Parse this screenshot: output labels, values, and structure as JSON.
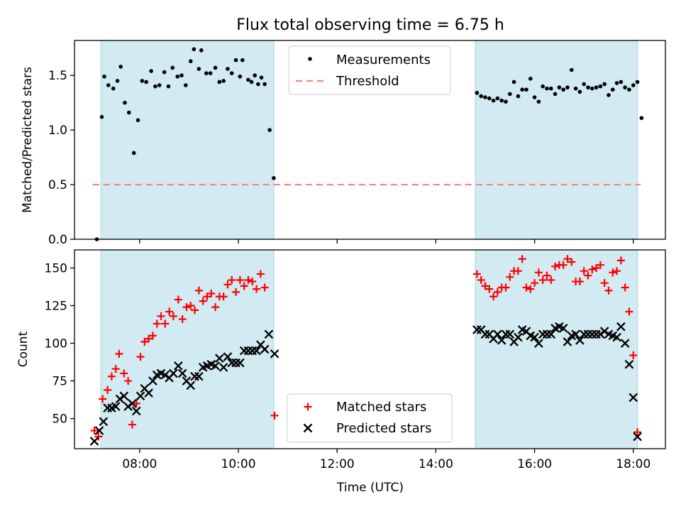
{
  "title": "Flux total observing time = 6.75 h",
  "colors": {
    "shade": "#add8e6",
    "threshold": "#ff7f7f",
    "matched": "#ff0000",
    "predicted": "#000000",
    "measurement": "#000000"
  },
  "chart_data": [
    {
      "type": "scatter",
      "ylabel": "Matched/Predicted stars",
      "ylim": [
        0,
        1.82
      ],
      "xlim_hours": [
        6.68,
        18.65
      ],
      "yticks": [
        {
          "v": 0,
          "label": "0.0"
        },
        {
          "v": 0.5,
          "label": "0.5"
        },
        {
          "v": 1.0,
          "label": "1.0"
        },
        {
          "v": 1.5,
          "label": "1.5"
        }
      ],
      "shaded_intervals": [
        [
          "07:13",
          "10:43"
        ],
        [
          "14:48",
          "18:05"
        ]
      ],
      "threshold": 0.5,
      "legend": [
        "Measurements",
        "Threshold"
      ],
      "legend_position": "upper center",
      "series": [
        {
          "name": "Measurements",
          "points": [
            [
              "07:08",
              0.0
            ],
            [
              "07:14",
              1.12
            ],
            [
              "07:17",
              1.49
            ],
            [
              "07:22",
              1.41
            ],
            [
              "07:28",
              1.38
            ],
            [
              "07:33",
              1.45
            ],
            [
              "07:37",
              1.58
            ],
            [
              "07:42",
              1.25
            ],
            [
              "07:47",
              1.16
            ],
            [
              "07:53",
              0.79
            ],
            [
              "07:58",
              1.09
            ],
            [
              "08:03",
              1.45
            ],
            [
              "08:08",
              1.44
            ],
            [
              "08:14",
              1.54
            ],
            [
              "08:19",
              1.4
            ],
            [
              "08:24",
              1.41
            ],
            [
              "08:30",
              1.53
            ],
            [
              "08:35",
              1.4
            ],
            [
              "08:40",
              1.57
            ],
            [
              "08:46",
              1.49
            ],
            [
              "08:51",
              1.5
            ],
            [
              "08:56",
              1.41
            ],
            [
              "09:02",
              1.63
            ],
            [
              "09:06",
              1.74
            ],
            [
              "09:12",
              1.56
            ],
            [
              "09:15",
              1.73
            ],
            [
              "09:21",
              1.52
            ],
            [
              "09:26",
              1.52
            ],
            [
              "09:32",
              1.57
            ],
            [
              "09:37",
              1.44
            ],
            [
              "09:42",
              1.45
            ],
            [
              "09:47",
              1.56
            ],
            [
              "09:52",
              1.52
            ],
            [
              "09:57",
              1.64
            ],
            [
              "10:02",
              1.49
            ],
            [
              "10:05",
              1.64
            ],
            [
              "10:12",
              1.46
            ],
            [
              "10:16",
              1.44
            ],
            [
              "10:20",
              1.5
            ],
            [
              "10:24",
              1.42
            ],
            [
              "10:28",
              1.48
            ],
            [
              "10:32",
              1.42
            ],
            [
              "10:38",
              1.0
            ],
            [
              "10:43",
              0.56
            ],
            [
              "14:50",
              1.34
            ],
            [
              "14:55",
              1.31
            ],
            [
              "15:00",
              1.3
            ],
            [
              "15:05",
              1.29
            ],
            [
              "15:10",
              1.27
            ],
            [
              "15:15",
              1.29
            ],
            [
              "15:20",
              1.27
            ],
            [
              "15:25",
              1.26
            ],
            [
              "15:30",
              1.33
            ],
            [
              "15:35",
              1.44
            ],
            [
              "15:40",
              1.31
            ],
            [
              "15:45",
              1.37
            ],
            [
              "15:50",
              1.37
            ],
            [
              "15:55",
              1.47
            ],
            [
              "16:00",
              1.3
            ],
            [
              "16:05",
              1.26
            ],
            [
              "16:10",
              1.4
            ],
            [
              "16:15",
              1.38
            ],
            [
              "16:20",
              1.38
            ],
            [
              "16:25",
              1.33
            ],
            [
              "16:30",
              1.39
            ],
            [
              "16:35",
              1.37
            ],
            [
              "16:40",
              1.39
            ],
            [
              "16:45",
              1.55
            ],
            [
              "16:50",
              1.38
            ],
            [
              "16:55",
              1.35
            ],
            [
              "17:00",
              1.42
            ],
            [
              "17:05",
              1.39
            ],
            [
              "17:10",
              1.38
            ],
            [
              "17:15",
              1.39
            ],
            [
              "17:20",
              1.4
            ],
            [
              "17:25",
              1.42
            ],
            [
              "17:30",
              1.32
            ],
            [
              "17:35",
              1.37
            ],
            [
              "17:40",
              1.43
            ],
            [
              "17:45",
              1.44
            ],
            [
              "17:50",
              1.39
            ],
            [
              "17:55",
              1.37
            ],
            [
              "18:00",
              1.41
            ],
            [
              "18:05",
              1.44
            ],
            [
              "18:10",
              1.11
            ]
          ]
        }
      ]
    },
    {
      "type": "scatter",
      "xlabel": "Time (UTC)",
      "ylabel": "Count",
      "ylim": [
        30,
        162
      ],
      "xlim_hours": [
        6.68,
        18.65
      ],
      "xticks": [
        "08:00",
        "10:00",
        "12:00",
        "14:00",
        "16:00",
        "18:00"
      ],
      "yticks": [
        {
          "v": 50,
          "label": "50"
        },
        {
          "v": 75,
          "label": "75"
        },
        {
          "v": 100,
          "label": "100"
        },
        {
          "v": 125,
          "label": "125"
        },
        {
          "v": 150,
          "label": "150"
        }
      ],
      "shaded_intervals": [
        [
          "07:13",
          "10:43"
        ],
        [
          "14:48",
          "18:05"
        ]
      ],
      "legend": [
        "Matched stars",
        "Predicted stars"
      ],
      "legend_position": "lower center",
      "series": [
        {
          "name": "Matched stars",
          "points": [
            [
              "07:05",
              42
            ],
            [
              "07:10",
              38
            ],
            [
              "07:15",
              63
            ],
            [
              "07:21",
              69
            ],
            [
              "07:26",
              78
            ],
            [
              "07:31",
              83
            ],
            [
              "07:35",
              93
            ],
            [
              "07:41",
              80
            ],
            [
              "07:46",
              75
            ],
            [
              "07:51",
              46
            ],
            [
              "07:56",
              60
            ],
            [
              "08:01",
              91
            ],
            [
              "08:06",
              101
            ],
            [
              "08:11",
              103
            ],
            [
              "08:16",
              105
            ],
            [
              "08:21",
              113
            ],
            [
              "08:26",
              118
            ],
            [
              "08:31",
              113
            ],
            [
              "08:36",
              121
            ],
            [
              "08:41",
              118
            ],
            [
              "08:47",
              129
            ],
            [
              "08:52",
              116
            ],
            [
              "08:57",
              124
            ],
            [
              "09:02",
              125
            ],
            [
              "09:07",
              122
            ],
            [
              "09:12",
              135
            ],
            [
              "09:17",
              128
            ],
            [
              "09:22",
              131
            ],
            [
              "09:27",
              133
            ],
            [
              "09:32",
              124
            ],
            [
              "09:37",
              131
            ],
            [
              "09:42",
              131
            ],
            [
              "09:47",
              139
            ],
            [
              "09:52",
              142
            ],
            [
              "09:57",
              134
            ],
            [
              "10:02",
              142
            ],
            [
              "10:07",
              138
            ],
            [
              "10:12",
              142
            ],
            [
              "10:17",
              141
            ],
            [
              "10:22",
              136
            ],
            [
              "10:27",
              146
            ],
            [
              "10:32",
              137
            ],
            [
              "10:44",
              52
            ],
            [
              "14:50",
              146
            ],
            [
              "14:55",
              142
            ],
            [
              "15:00",
              138
            ],
            [
              "15:05",
              136
            ],
            [
              "15:10",
              131
            ],
            [
              "15:15",
              134
            ],
            [
              "15:20",
              137
            ],
            [
              "15:25",
              137
            ],
            [
              "15:30",
              144
            ],
            [
              "15:35",
              148
            ],
            [
              "15:40",
              148
            ],
            [
              "15:45",
              156
            ],
            [
              "15:50",
              137
            ],
            [
              "15:55",
              136
            ],
            [
              "16:00",
              140
            ],
            [
              "16:05",
              147
            ],
            [
              "16:10",
              142
            ],
            [
              "16:15",
              145
            ],
            [
              "16:20",
              142
            ],
            [
              "16:25",
              151
            ],
            [
              "16:30",
              152
            ],
            [
              "16:35",
              152
            ],
            [
              "16:40",
              156
            ],
            [
              "16:45",
              154
            ],
            [
              "16:50",
              141
            ],
            [
              "16:55",
              141
            ],
            [
              "17:00",
              148
            ],
            [
              "17:05",
              145
            ],
            [
              "17:10",
              149
            ],
            [
              "17:15",
              150
            ],
            [
              "17:20",
              152
            ],
            [
              "17:25",
              140
            ],
            [
              "17:30",
              135
            ],
            [
              "17:35",
              147
            ],
            [
              "17:40",
              148
            ],
            [
              "17:45",
              155
            ],
            [
              "17:50",
              137
            ],
            [
              "17:55",
              121
            ],
            [
              "18:00",
              92
            ],
            [
              "18:05",
              41
            ]
          ]
        },
        {
          "name": "Predicted stars",
          "points": [
            [
              "07:05",
              35
            ],
            [
              "07:11",
              42
            ],
            [
              "07:16",
              48
            ],
            [
              "07:21",
              57
            ],
            [
              "07:26",
              57
            ],
            [
              "07:31",
              58
            ],
            [
              "07:36",
              63
            ],
            [
              "07:41",
              65
            ],
            [
              "07:46",
              58
            ],
            [
              "07:51",
              60
            ],
            [
              "07:56",
              55
            ],
            [
              "08:01",
              65
            ],
            [
              "08:06",
              70
            ],
            [
              "08:11",
              67
            ],
            [
              "08:16",
              75
            ],
            [
              "08:21",
              79
            ],
            [
              "08:26",
              80
            ],
            [
              "08:31",
              79
            ],
            [
              "08:36",
              77
            ],
            [
              "08:41",
              80
            ],
            [
              "08:47",
              85
            ],
            [
              "08:52",
              80
            ],
            [
              "08:57",
              75
            ],
            [
              "09:02",
              72
            ],
            [
              "09:07",
              78
            ],
            [
              "09:12",
              78
            ],
            [
              "09:17",
              84
            ],
            [
              "09:22",
              85
            ],
            [
              "09:27",
              86
            ],
            [
              "09:32",
              85
            ],
            [
              "09:37",
              90
            ],
            [
              "09:42",
              84
            ],
            [
              "09:47",
              91
            ],
            [
              "09:52",
              87
            ],
            [
              "09:57",
              87
            ],
            [
              "10:02",
              87
            ],
            [
              "10:07",
              95
            ],
            [
              "10:12",
              95
            ],
            [
              "10:17",
              95
            ],
            [
              "10:22",
              95
            ],
            [
              "10:27",
              99
            ],
            [
              "10:32",
              96
            ],
            [
              "10:37",
              106
            ],
            [
              "10:44",
              93
            ],
            [
              "14:50",
              109
            ],
            [
              "14:55",
              109
            ],
            [
              "15:00",
              106
            ],
            [
              "15:05",
              106
            ],
            [
              "15:10",
              103
            ],
            [
              "15:15",
              106
            ],
            [
              "15:20",
              102
            ],
            [
              "15:25",
              106
            ],
            [
              "15:30",
              106
            ],
            [
              "15:35",
              101
            ],
            [
              "15:40",
              104
            ],
            [
              "15:45",
              109
            ],
            [
              "15:50",
              108
            ],
            [
              "15:55",
              105
            ],
            [
              "16:00",
              104
            ],
            [
              "16:05",
              100
            ],
            [
              "16:10",
              106
            ],
            [
              "16:15",
              106
            ],
            [
              "16:20",
              106
            ],
            [
              "16:25",
              110
            ],
            [
              "16:30",
              111
            ],
            [
              "16:35",
              110
            ],
            [
              "16:40",
              101
            ],
            [
              "16:45",
              105
            ],
            [
              "16:50",
              106
            ],
            [
              "16:55",
              102
            ],
            [
              "17:00",
              106
            ],
            [
              "17:05",
              106
            ],
            [
              "17:10",
              106
            ],
            [
              "17:15",
              106
            ],
            [
              "17:20",
              106
            ],
            [
              "17:25",
              108
            ],
            [
              "17:30",
              106
            ],
            [
              "17:35",
              105
            ],
            [
              "17:40",
              104
            ],
            [
              "17:45",
              111
            ],
            [
              "17:50",
              100
            ],
            [
              "17:55",
              86
            ],
            [
              "18:00",
              64
            ],
            [
              "18:05",
              38
            ]
          ]
        }
      ]
    }
  ]
}
